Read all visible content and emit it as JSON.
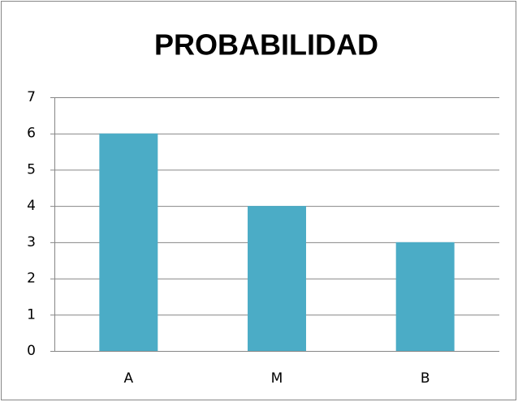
{
  "chart_data": {
    "type": "bar",
    "title": "PROBABILIDAD",
    "categories": [
      "A",
      "M",
      "B"
    ],
    "values": [
      6,
      4,
      3
    ],
    "color": "#4bacc6",
    "ylim": [
      0,
      7
    ],
    "yticks": [
      0,
      1,
      2,
      3,
      4,
      5,
      6,
      7
    ],
    "grid": true
  }
}
